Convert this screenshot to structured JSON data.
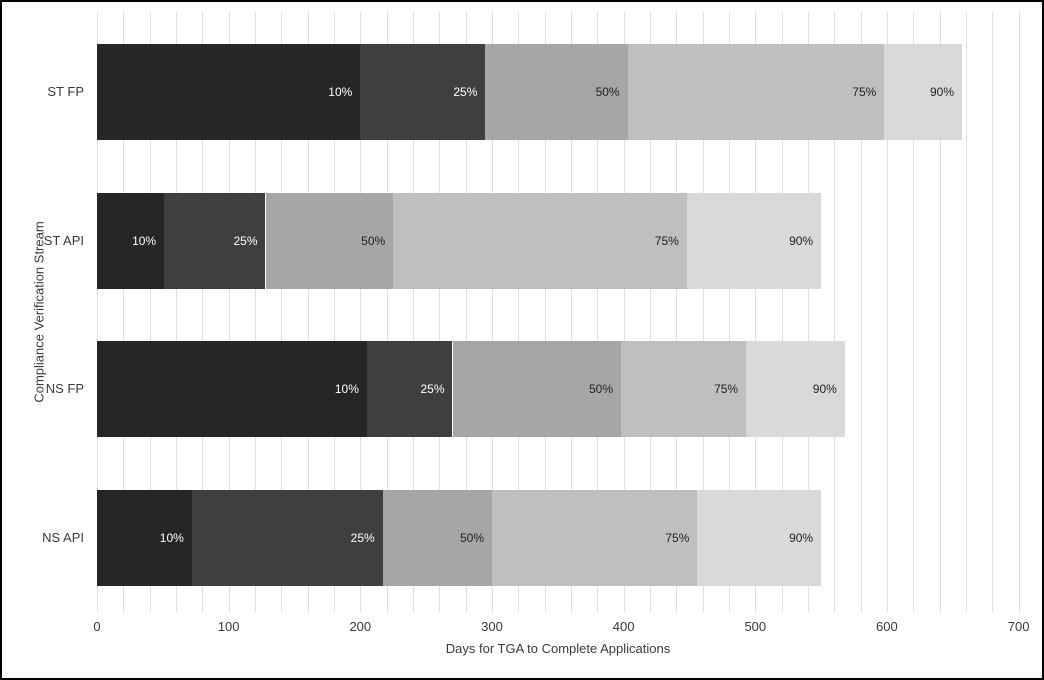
{
  "chart_data": {
    "type": "bar",
    "orientation": "horizontal",
    "stacked": true,
    "title": "",
    "xlabel": "Days for TGA to Complete Applications",
    "ylabel": "Compliance Verification Stream",
    "xlim": [
      0,
      700
    ],
    "x_major_ticks": [
      0,
      100,
      200,
      300,
      400,
      500,
      600,
      700
    ],
    "x_minor_gridline_interval": 20,
    "grid": true,
    "legend": "none",
    "categories": [
      "ST FP",
      "ST API",
      "NS FP",
      "NS API"
    ],
    "values_are": "cumulative percentile values in days; each segment spans from the previous percentile to this one",
    "series": [
      {
        "name": "10%",
        "color": "#262626",
        "label_color": "#ffffff",
        "cumulative_days": [
          200,
          51,
          205,
          72
        ]
      },
      {
        "name": "25%",
        "color": "#3f3f3f",
        "label_color": "#ffffff",
        "cumulative_days": [
          295,
          128,
          270,
          217
        ]
      },
      {
        "name": "50%",
        "color": "#a6a6a6",
        "label_color": "#1f1f1f",
        "cumulative_days": [
          403,
          225,
          398,
          300
        ]
      },
      {
        "name": "75%",
        "color": "#bfbfbf",
        "label_color": "#1f1f1f",
        "cumulative_days": [
          598,
          448,
          493,
          456
        ]
      },
      {
        "name": "90%",
        "color": "#d9d9d9",
        "label_color": "#1f1f1f",
        "cumulative_days": [
          657,
          550,
          568,
          550
        ]
      }
    ],
    "colors": {
      "gridline": "#e0e0e0",
      "axis_text": "#3a3a3a",
      "background": "#ffffff",
      "border": "#000000"
    }
  }
}
